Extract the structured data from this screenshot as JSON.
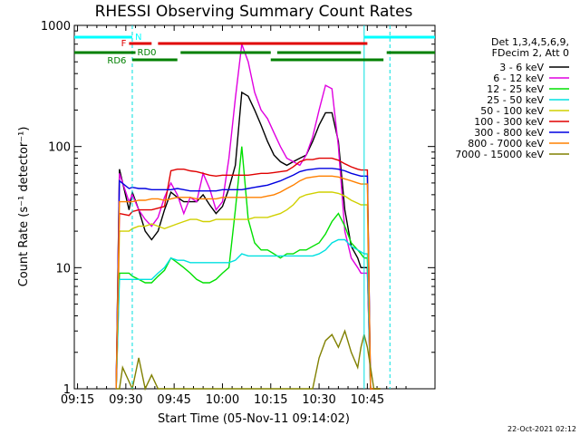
{
  "chart_data": {
    "type": "line",
    "title": "RHESSI Observing Summary Count Rates",
    "xlabel": "Start Time (05-Nov-11 09:14:02)",
    "ylabel": "Count Rate (s⁻¹ detector⁻¹)",
    "x_ticks": [
      "09:15",
      "09:30",
      "09:45",
      "10:00",
      "10:15",
      "10:30",
      "10:45"
    ],
    "x_range_min": [
      0,
      112
    ],
    "y_ticks": [
      "1",
      "10",
      "100",
      "1000"
    ],
    "y_scale": "log",
    "ylim": [
      1,
      1000
    ],
    "timestamp": "22-Oct-2021 02:12",
    "legend_header": [
      "Det 1,3,4,5,6,9,",
      "FDecim 2, Att 0"
    ],
    "legend_placement": "right",
    "flags": {
      "N_label": "N",
      "F_label": "F",
      "RD0_label": "RD0",
      "RD6_label": "RD6",
      "N_color": "#00ffff",
      "F_color": "#e00000",
      "RD0_color": "#008000",
      "RD6_color": "#008000",
      "N_segments": [
        [
          0,
          18
        ],
        [
          90,
          112
        ]
      ],
      "F_segments": [
        [
          17,
          24
        ],
        [
          26,
          91
        ]
      ],
      "RD0_segments": [
        [
          0,
          19
        ],
        [
          33,
          61
        ],
        [
          63,
          89
        ],
        [
          97,
          112
        ]
      ],
      "RD6_segments": [
        [
          18,
          32
        ],
        [
          61,
          96
        ]
      ]
    },
    "night_lines_min": [
      18,
      90,
      98
    ],
    "series": [
      {
        "name": "3 - 6 keV",
        "color": "#000000",
        "x": [
          13,
          14,
          17,
          18,
          20,
          22,
          24,
          26,
          28,
          30,
          32,
          34,
          36,
          38,
          40,
          42,
          44,
          46,
          48,
          50,
          52,
          54,
          56,
          58,
          60,
          62,
          64,
          66,
          68,
          70,
          72,
          74,
          76,
          78,
          80,
          82,
          84,
          86,
          88,
          89,
          90,
          91,
          92,
          93,
          94,
          95
        ],
        "y": [
          0,
          65,
          30,
          42,
          30,
          20,
          17,
          20,
          30,
          42,
          38,
          35,
          35,
          35,
          40,
          33,
          28,
          32,
          45,
          70,
          280,
          260,
          200,
          150,
          110,
          85,
          75,
          70,
          75,
          80,
          85,
          110,
          150,
          190,
          190,
          110,
          30,
          15,
          12,
          10,
          10,
          10,
          0,
          0,
          0,
          0
        ]
      },
      {
        "name": "6 - 12 keV",
        "color": "#e000e0",
        "x": [
          13,
          14,
          17,
          18,
          20,
          22,
          24,
          26,
          28,
          30,
          32,
          34,
          36,
          38,
          40,
          42,
          44,
          46,
          48,
          50,
          52,
          54,
          56,
          58,
          60,
          62,
          64,
          66,
          68,
          70,
          72,
          74,
          76,
          78,
          80,
          82,
          84,
          86,
          88,
          89,
          90,
          91,
          92,
          93,
          94,
          95
        ],
        "y": [
          0,
          60,
          35,
          40,
          30,
          25,
          22,
          26,
          38,
          50,
          40,
          28,
          38,
          35,
          60,
          45,
          30,
          35,
          80,
          250,
          700,
          500,
          280,
          200,
          170,
          130,
          100,
          80,
          75,
          70,
          85,
          120,
          200,
          320,
          300,
          100,
          20,
          12,
          10,
          9,
          9,
          9,
          0,
          0,
          0,
          0
        ]
      },
      {
        "name": "12 - 25 keV",
        "color": "#00e000",
        "x": [
          13,
          14,
          17,
          18,
          20,
          22,
          24,
          26,
          28,
          30,
          32,
          34,
          36,
          38,
          40,
          42,
          44,
          46,
          48,
          50,
          52,
          54,
          56,
          58,
          60,
          62,
          64,
          66,
          68,
          70,
          72,
          74,
          76,
          78,
          80,
          82,
          84,
          86,
          88,
          89,
          90,
          91,
          92,
          93,
          94,
          95
        ],
        "y": [
          0,
          9,
          9,
          8.5,
          8,
          7.5,
          7.5,
          8.5,
          9.5,
          12,
          11,
          10,
          9,
          8,
          7.5,
          7.5,
          8,
          9,
          10,
          30,
          100,
          25,
          16,
          14,
          14,
          13,
          12,
          13,
          13,
          14,
          14,
          15,
          16,
          19,
          24,
          28,
          22,
          16,
          14,
          13,
          12,
          12,
          0,
          0,
          0,
          0
        ]
      },
      {
        "name": "25 - 50 keV",
        "color": "#00e0e0",
        "x": [
          13,
          14,
          17,
          18,
          20,
          22,
          24,
          26,
          28,
          30,
          32,
          34,
          36,
          38,
          40,
          42,
          44,
          46,
          48,
          50,
          52,
          54,
          56,
          58,
          60,
          62,
          64,
          66,
          68,
          70,
          72,
          74,
          76,
          78,
          80,
          82,
          84,
          86,
          88,
          89,
          90,
          91,
          92,
          93,
          94,
          95
        ],
        "y": [
          0,
          8,
          8,
          8,
          8,
          8,
          8,
          9,
          10,
          12,
          11.5,
          11.5,
          11,
          11,
          11,
          11,
          11,
          11,
          11,
          11.5,
          13,
          12.5,
          12.5,
          12.5,
          12.5,
          12.5,
          12.5,
          12.5,
          12.5,
          12.5,
          12.5,
          12.5,
          13,
          14,
          16,
          17,
          17,
          15,
          14,
          13.5,
          13,
          13,
          0,
          0,
          0,
          0
        ]
      },
      {
        "name": "50 - 100 keV",
        "color": "#d0d000",
        "x": [
          13,
          14,
          17,
          18,
          20,
          22,
          24,
          26,
          28,
          30,
          32,
          34,
          36,
          38,
          40,
          42,
          44,
          46,
          48,
          50,
          52,
          54,
          56,
          58,
          60,
          62,
          64,
          66,
          68,
          70,
          72,
          74,
          76,
          78,
          80,
          82,
          84,
          86,
          88,
          89,
          90,
          91,
          92,
          93,
          94,
          95
        ],
        "y": [
          0,
          20,
          20,
          21,
          22,
          22,
          23,
          22,
          21,
          22,
          23,
          24,
          25,
          25,
          24,
          24,
          25,
          25,
          25,
          25,
          25,
          25,
          26,
          26,
          26,
          27,
          28,
          30,
          33,
          38,
          40,
          41,
          42,
          42,
          42,
          41,
          39,
          36,
          34,
          33,
          33,
          33,
          0,
          0,
          0,
          0
        ]
      },
      {
        "name": "100 - 300 keV",
        "color": "#e00000",
        "x": [
          13,
          14,
          17,
          18,
          20,
          22,
          24,
          26,
          28,
          30,
          32,
          34,
          36,
          38,
          40,
          42,
          44,
          46,
          48,
          50,
          52,
          54,
          56,
          58,
          60,
          62,
          64,
          66,
          68,
          70,
          72,
          74,
          76,
          78,
          80,
          82,
          84,
          86,
          88,
          89,
          90,
          91,
          92,
          93,
          94,
          95
        ],
        "y": [
          0,
          28,
          27,
          29,
          30,
          30,
          30,
          31,
          32,
          63,
          65,
          65,
          63,
          62,
          60,
          58,
          57,
          58,
          58,
          58,
          58,
          58,
          59,
          60,
          60,
          61,
          62,
          63,
          68,
          75,
          78,
          78,
          80,
          80,
          80,
          77,
          72,
          68,
          65,
          64,
          64,
          64,
          0,
          0,
          0,
          0
        ]
      },
      {
        "name": "300 - 800 keV",
        "color": "#0000e0",
        "x": [
          13,
          14,
          17,
          18,
          20,
          22,
          24,
          26,
          28,
          30,
          32,
          34,
          36,
          38,
          40,
          42,
          44,
          46,
          48,
          50,
          52,
          54,
          56,
          58,
          60,
          62,
          64,
          66,
          68,
          70,
          72,
          74,
          76,
          78,
          80,
          82,
          84,
          86,
          88,
          89,
          90,
          91,
          92,
          93,
          94,
          95
        ],
        "y": [
          0,
          52,
          45,
          46,
          45,
          45,
          44,
          44,
          44,
          44,
          45,
          44,
          43,
          43,
          43,
          43,
          43,
          44,
          44,
          44,
          44,
          45,
          46,
          47,
          48,
          50,
          52,
          55,
          58,
          62,
          64,
          65,
          66,
          66,
          66,
          65,
          63,
          60,
          58,
          57,
          57,
          57,
          0,
          0,
          0,
          0
        ]
      },
      {
        "name": "800 - 7000 keV",
        "color": "#ff8000",
        "x": [
          13,
          14,
          17,
          18,
          20,
          22,
          24,
          26,
          28,
          30,
          32,
          34,
          36,
          38,
          40,
          42,
          44,
          46,
          48,
          50,
          52,
          54,
          56,
          58,
          60,
          62,
          64,
          66,
          68,
          70,
          72,
          74,
          76,
          78,
          80,
          82,
          84,
          86,
          88,
          89,
          90,
          91,
          92,
          93,
          94,
          95
        ],
        "y": [
          0,
          35,
          35,
          35,
          36,
          36,
          37,
          37,
          36,
          37,
          38,
          38,
          38,
          37,
          37,
          37,
          37,
          38,
          38,
          38,
          38,
          38,
          38,
          38,
          39,
          40,
          42,
          45,
          48,
          52,
          55,
          56,
          57,
          57,
          57,
          56,
          54,
          52,
          50,
          49,
          49,
          49,
          0,
          0,
          0,
          0
        ]
      },
      {
        "name": "7000 - 15000 keV",
        "color": "#808000",
        "x": [
          13,
          14,
          15,
          18,
          20,
          22,
          24,
          26,
          28,
          30,
          32,
          34,
          36,
          38,
          40,
          42,
          44,
          46,
          48,
          50,
          52,
          54,
          56,
          58,
          60,
          62,
          64,
          66,
          68,
          70,
          72,
          74,
          76,
          78,
          80,
          82,
          84,
          86,
          88,
          89,
          90,
          91,
          92,
          93,
          94,
          95
        ],
        "y": [
          0,
          0,
          1.5,
          1,
          1.8,
          1,
          1.3,
          1,
          1,
          1,
          1,
          1,
          1,
          1,
          1,
          1,
          1,
          1,
          1,
          1,
          1,
          1,
          1,
          1,
          1,
          1,
          1,
          1,
          1,
          1,
          1,
          1,
          1.8,
          2.5,
          2.8,
          2.2,
          3,
          2,
          1.5,
          2.2,
          2.8,
          2.2,
          1.5,
          1,
          1,
          1
        ]
      }
    ]
  }
}
